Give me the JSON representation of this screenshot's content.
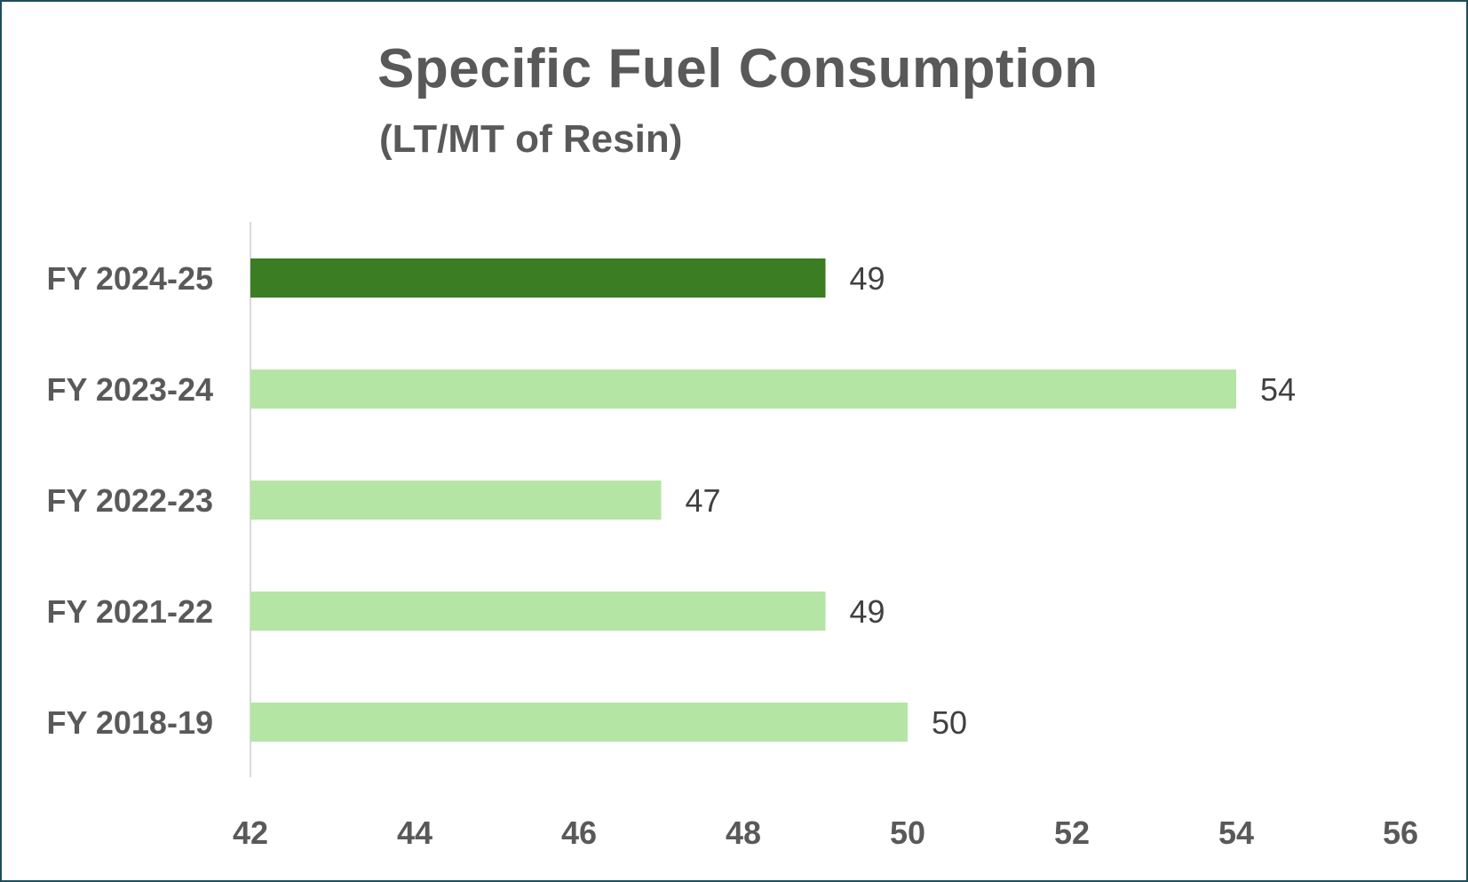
{
  "chart_data": {
    "type": "bar",
    "orientation": "horizontal",
    "title": "Specific Fuel Consumption",
    "subtitle": "(LT/MT of Resin)",
    "xlabel": "",
    "ylabel": "",
    "categories": [
      "FY 2024-25",
      "FY 2023-24",
      "FY 2022-23",
      "FY 2021-22",
      "FY 2018-19"
    ],
    "values": [
      49,
      54,
      47,
      49,
      50
    ],
    "data_labels": [
      "49",
      "54",
      "47",
      "49",
      "50"
    ],
    "xlim": [
      42,
      56
    ],
    "xticks": [
      42,
      44,
      46,
      48,
      50,
      52,
      54,
      56
    ],
    "xtick_labels": [
      "42",
      "44",
      "46",
      "48",
      "50",
      "52",
      "54",
      "56"
    ],
    "grid": false,
    "legend": "none",
    "colors": {
      "highlight": "#3a7d23",
      "default": "#b5e5a4",
      "text": "#595959",
      "border": "#1f4e5a",
      "axis": "#d9d9d9"
    },
    "highlight_index": 0
  }
}
